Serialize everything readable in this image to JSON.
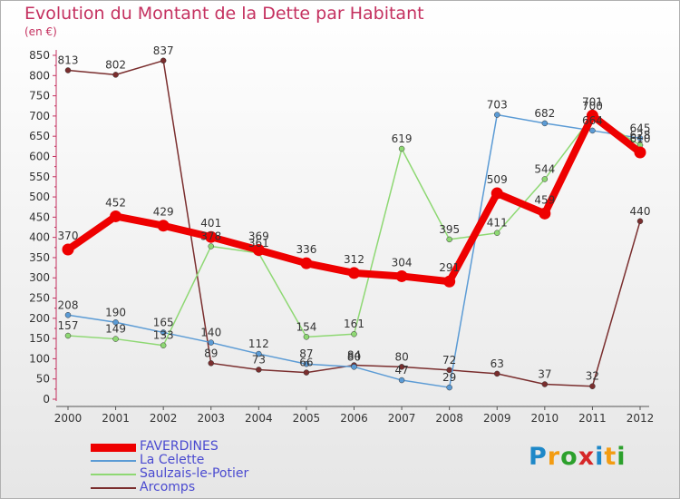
{
  "title": "Evolution du Montant de la Dette par Habitant",
  "unit": "(en €)",
  "brand": "Proxiti",
  "chart_data": {
    "type": "line",
    "title": "Evolution du Montant de la Dette par Habitant",
    "ylabel": "(en €)",
    "x": [
      "2000",
      "2001",
      "2002",
      "2003",
      "2004",
      "2005",
      "2006",
      "2007",
      "2008",
      "2009",
      "2010",
      "2011",
      "2012"
    ],
    "y_ticks": [
      "0",
      "50",
      "100",
      "150",
      "200",
      "250",
      "300",
      "350",
      "400",
      "450",
      "500",
      "550",
      "600",
      "650",
      "700",
      "750",
      "800",
      "850"
    ],
    "ylim": [
      0,
      850
    ],
    "grid": false,
    "legend": "bottom-left",
    "series": [
      {
        "name": "FAVERDINES",
        "color": "#ee0000",
        "values": [
          370,
          452,
          429,
          401,
          369,
          336,
          312,
          304,
          291,
          509,
          459,
          701,
          610
        ],
        "labels": [
          "370",
          "452",
          "429",
          "401",
          "369",
          "336",
          "312",
          "304",
          "291",
          "509",
          "459",
          "701",
          "610"
        ]
      },
      {
        "name": "La Celette",
        "color": "#5b9bd5",
        "values": [
          208,
          190,
          165,
          140,
          112,
          87,
          80,
          47,
          29,
          703,
          682,
          664,
          645
        ],
        "labels": [
          "208",
          "190",
          "165",
          "140",
          "112",
          "87",
          "80",
          "47",
          "29",
          "703",
          "682",
          "664",
          "645"
        ]
      },
      {
        "name": "Saulzais-le-Potier",
        "color": "#8ed873",
        "values": [
          157,
          149,
          133,
          378,
          361,
          154,
          161,
          619,
          395,
          411,
          544,
          700,
          628
        ],
        "labels": [
          "157",
          "149",
          "133",
          "378",
          "361",
          "154",
          "161",
          "619",
          "395",
          "411",
          "544",
          "700",
          "628"
        ]
      },
      {
        "name": "Arcomps",
        "color": "#7a2e2e",
        "values": [
          813,
          802,
          837,
          89,
          73,
          66,
          84,
          80,
          72,
          63,
          37,
          32,
          440
        ],
        "labels": [
          "813",
          "802",
          "837",
          "89",
          "73",
          "66",
          "84",
          "80",
          "72",
          "63",
          "37",
          "32",
          "440"
        ]
      }
    ]
  }
}
